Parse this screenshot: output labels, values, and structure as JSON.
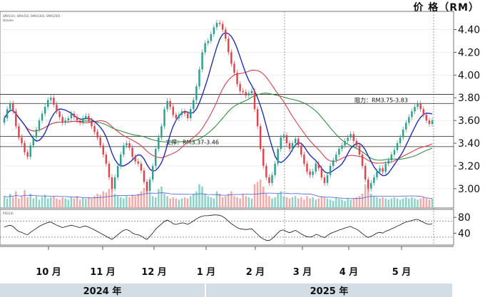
{
  "chart_data": {
    "type": "candlestick",
    "y_unit_label": "价 格（RM）",
    "yticks": [
      "4.40",
      "4.20",
      "4.00",
      "3.80",
      "3.60",
      "3.40",
      "3.20",
      "3.00"
    ],
    "ylim": [
      2.83,
      4.56
    ],
    "months": [
      "10 月",
      "11 月",
      "12 月",
      "1 月",
      "2 月",
      "3 月",
      "4 月",
      "5 月"
    ],
    "years": [
      "2024 年",
      "2025 年"
    ],
    "resistance": {
      "label": "阻力：RM3.75-3.83",
      "low": 3.75,
      "high": 3.83
    },
    "support": {
      "label": "支撑：RM3.37-3.46",
      "low": 3.37,
      "high": 3.46
    },
    "series_info": [
      "SMA(10), SMA(50), SMA(100), SMA(200)",
      "Volume",
      "RSI(14)"
    ],
    "indicator": {
      "name": "RSI",
      "yticks": [
        "80",
        "40"
      ],
      "levels": [
        70,
        30
      ]
    },
    "prices": [
      3.62,
      3.7,
      3.75,
      3.68,
      3.55,
      3.45,
      3.4,
      3.32,
      3.28,
      3.38,
      3.45,
      3.52,
      3.6,
      3.66,
      3.72,
      3.78,
      3.8,
      3.74,
      3.68,
      3.63,
      3.58,
      3.6,
      3.62,
      3.66,
      3.63,
      3.6,
      3.58,
      3.62,
      3.64,
      3.6,
      3.55,
      3.5,
      3.45,
      3.38,
      3.3,
      3.22,
      3.1,
      3.0,
      3.1,
      3.2,
      3.3,
      3.38,
      3.4,
      3.36,
      3.28,
      3.24,
      3.22,
      3.16,
      3.06,
      2.98,
      3.08,
      3.2,
      3.35,
      3.45,
      3.55,
      3.7,
      3.77,
      3.72,
      3.65,
      3.62,
      3.65,
      3.68,
      3.66,
      3.62,
      3.7,
      3.78,
      3.9,
      4.05,
      4.2,
      4.28,
      4.3,
      4.36,
      4.42,
      4.46,
      4.45,
      4.4,
      4.32,
      4.2,
      4.1,
      4.02,
      3.92,
      3.86,
      3.85,
      3.82,
      3.84,
      3.86,
      3.7,
      3.55,
      3.35,
      3.2,
      3.1,
      3.05,
      3.12,
      3.22,
      3.35,
      3.45,
      3.47,
      3.4,
      3.35,
      3.4,
      3.44,
      3.38,
      3.3,
      3.22,
      3.15,
      3.12,
      3.15,
      3.22,
      3.18,
      3.1,
      3.05,
      3.12,
      3.2,
      3.25,
      3.3,
      3.35,
      3.38,
      3.42,
      3.45,
      3.48,
      3.42,
      3.38,
      3.3,
      3.2,
      3.08,
      3.0,
      3.05,
      3.1,
      3.15,
      3.18,
      3.15,
      3.22,
      3.25,
      3.3,
      3.34,
      3.4,
      3.45,
      3.52,
      3.58,
      3.63,
      3.68,
      3.72,
      3.75,
      3.7,
      3.65,
      3.6,
      3.57,
      3.6
    ],
    "rsi": [
      55,
      58,
      60,
      57,
      50,
      44,
      42,
      38,
      36,
      42,
      47,
      52,
      57,
      61,
      64,
      67,
      68,
      64,
      60,
      57,
      54,
      56,
      58,
      60,
      58,
      56,
      54,
      57,
      58,
      55,
      52,
      48,
      44,
      40,
      36,
      32,
      28,
      24,
      30,
      36,
      42,
      47,
      49,
      46,
      40,
      37,
      36,
      33,
      28,
      24,
      32,
      40,
      50,
      57,
      63,
      70,
      73,
      69,
      64,
      62,
      64,
      66,
      65,
      62,
      66,
      71,
      76,
      80,
      83,
      84,
      84,
      85,
      86,
      86,
      85,
      82,
      77,
      70,
      64,
      59,
      54,
      51,
      50,
      49,
      50,
      51,
      44,
      37,
      30,
      25,
      22,
      21,
      26,
      33,
      41,
      47,
      48,
      44,
      41,
      44,
      47,
      43,
      38,
      34,
      31,
      30,
      32,
      37,
      35,
      31,
      29,
      34,
      39,
      42,
      45,
      48,
      50,
      53,
      55,
      57,
      53,
      50,
      45,
      39,
      33,
      29,
      32,
      36,
      40,
      42,
      40,
      45,
      47,
      51,
      54,
      58,
      61,
      65,
      68,
      70,
      72,
      74,
      75,
      71,
      67,
      64,
      62,
      64
    ],
    "volume": [
      10,
      8,
      12,
      9,
      14,
      8,
      10,
      15,
      9,
      12,
      8,
      10,
      7,
      9,
      11,
      8,
      9,
      10,
      8,
      7,
      9,
      8,
      7,
      9,
      8,
      10,
      7,
      9,
      8,
      9,
      8,
      10,
      12,
      11,
      14,
      13,
      16,
      18,
      12,
      10,
      9,
      8,
      10,
      9,
      11,
      10,
      12,
      14,
      17,
      22,
      12,
      10,
      9,
      16,
      18,
      12,
      10,
      8,
      9,
      8,
      7,
      8,
      9,
      8,
      10,
      12,
      14,
      20,
      18,
      12,
      10,
      9,
      8,
      14,
      12,
      9,
      10,
      12,
      14,
      10,
      9,
      8,
      12,
      10,
      9,
      8,
      20,
      22,
      24,
      18,
      12,
      10,
      8,
      9,
      12,
      14,
      10,
      9,
      8,
      9,
      10,
      8,
      9,
      7,
      10,
      8,
      9,
      7,
      8,
      10,
      9,
      8,
      7,
      6,
      9,
      8,
      7,
      6,
      8,
      7,
      8,
      9,
      10,
      12,
      20,
      24,
      12,
      10,
      9,
      8,
      9,
      8,
      7,
      8,
      9,
      8,
      7,
      8,
      9,
      8,
      9,
      8,
      7,
      8,
      9,
      8,
      7,
      8
    ]
  }
}
